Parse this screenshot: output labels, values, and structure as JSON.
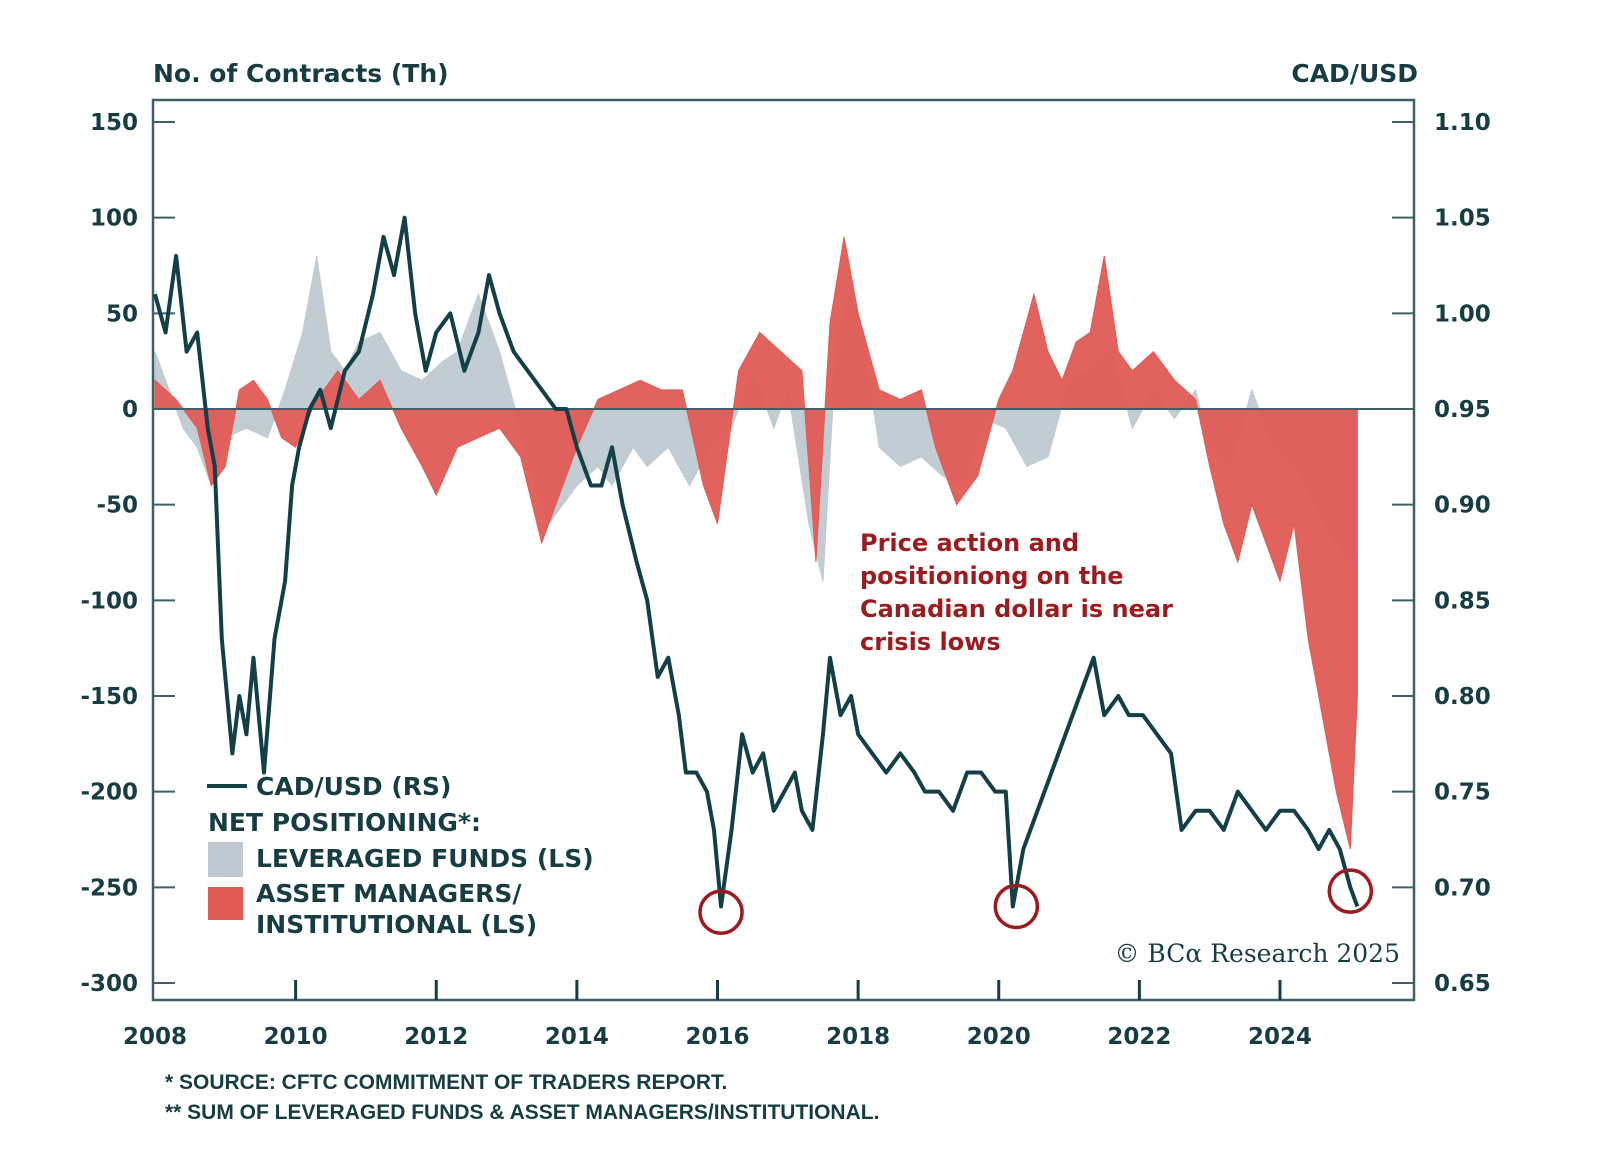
{
  "chart_data": {
    "type": "area",
    "title": "",
    "left_axis": {
      "label": "No. of Contracts (Th)",
      "ylim": [
        -300,
        150
      ],
      "ticks": [
        150,
        100,
        50,
        0,
        -50,
        -100,
        -150,
        -200,
        -250,
        -300
      ],
      "tick_labels": [
        "150",
        "100",
        "50",
        "0",
        "-50",
        "-100",
        "-150",
        "-200",
        "-250",
        "-300"
      ]
    },
    "right_axis": {
      "label": "CAD/USD",
      "ylim": [
        0.65,
        1.1
      ],
      "ticks": [
        1.1,
        1.05,
        1.0,
        0.95,
        0.9,
        0.85,
        0.8,
        0.75,
        0.7,
        0.65
      ],
      "tick_labels": [
        "1.10",
        "1.05",
        "1.00",
        "0.95",
        "0.90",
        "0.85",
        "0.80",
        "0.75",
        "0.70",
        "0.65"
      ]
    },
    "x_axis": {
      "xlim": [
        2008,
        2025.95
      ],
      "ticks": [
        2008,
        2010,
        2012,
        2014,
        2016,
        2018,
        2020,
        2022,
        2024
      ],
      "tick_labels": [
        "2008",
        "2010",
        "2012",
        "2014",
        "2016",
        "2018",
        "2020",
        "2022",
        "2024"
      ]
    },
    "series": [
      {
        "name": "CAD/USD (RS)",
        "type": "line",
        "axis": "right",
        "color": "#143f46",
        "points": [
          [
            2008.0,
            1.01
          ],
          [
            2008.15,
            0.99
          ],
          [
            2008.3,
            1.03
          ],
          [
            2008.45,
            0.98
          ],
          [
            2008.6,
            0.99
          ],
          [
            2008.75,
            0.94
          ],
          [
            2008.85,
            0.92
          ],
          [
            2008.95,
            0.83
          ],
          [
            2009.1,
            0.77
          ],
          [
            2009.2,
            0.8
          ],
          [
            2009.3,
            0.78
          ],
          [
            2009.4,
            0.82
          ],
          [
            2009.55,
            0.76
          ],
          [
            2009.7,
            0.83
          ],
          [
            2009.85,
            0.86
          ],
          [
            2009.95,
            0.91
          ],
          [
            2010.05,
            0.93
          ],
          [
            2010.2,
            0.95
          ],
          [
            2010.35,
            0.96
          ],
          [
            2010.5,
            0.94
          ],
          [
            2010.7,
            0.97
          ],
          [
            2010.9,
            0.98
          ],
          [
            2011.1,
            1.01
          ],
          [
            2011.25,
            1.04
          ],
          [
            2011.4,
            1.02
          ],
          [
            2011.55,
            1.05
          ],
          [
            2011.7,
            1.0
          ],
          [
            2011.85,
            0.97
          ],
          [
            2012.0,
            0.99
          ],
          [
            2012.2,
            1.0
          ],
          [
            2012.4,
            0.97
          ],
          [
            2012.6,
            0.99
          ],
          [
            2012.75,
            1.02
          ],
          [
            2012.9,
            1.0
          ],
          [
            2013.1,
            0.98
          ],
          [
            2013.3,
            0.97
          ],
          [
            2013.5,
            0.96
          ],
          [
            2013.7,
            0.95
          ],
          [
            2013.85,
            0.95
          ],
          [
            2014.0,
            0.93
          ],
          [
            2014.2,
            0.91
          ],
          [
            2014.35,
            0.91
          ],
          [
            2014.5,
            0.93
          ],
          [
            2014.65,
            0.9
          ],
          [
            2014.85,
            0.87
          ],
          [
            2015.0,
            0.85
          ],
          [
            2015.15,
            0.81
          ],
          [
            2015.3,
            0.82
          ],
          [
            2015.45,
            0.79
          ],
          [
            2015.55,
            0.76
          ],
          [
            2015.7,
            0.76
          ],
          [
            2015.85,
            0.75
          ],
          [
            2015.95,
            0.73
          ],
          [
            2016.05,
            0.69
          ],
          [
            2016.2,
            0.73
          ],
          [
            2016.35,
            0.78
          ],
          [
            2016.5,
            0.76
          ],
          [
            2016.65,
            0.77
          ],
          [
            2016.8,
            0.74
          ],
          [
            2016.95,
            0.75
          ],
          [
            2017.1,
            0.76
          ],
          [
            2017.2,
            0.74
          ],
          [
            2017.35,
            0.73
          ],
          [
            2017.5,
            0.78
          ],
          [
            2017.6,
            0.82
          ],
          [
            2017.75,
            0.79
          ],
          [
            2017.9,
            0.8
          ],
          [
            2018.0,
            0.78
          ],
          [
            2018.2,
            0.77
          ],
          [
            2018.4,
            0.76
          ],
          [
            2018.6,
            0.77
          ],
          [
            2018.8,
            0.76
          ],
          [
            2018.95,
            0.75
          ],
          [
            2019.15,
            0.75
          ],
          [
            2019.35,
            0.74
          ],
          [
            2019.55,
            0.76
          ],
          [
            2019.75,
            0.76
          ],
          [
            2019.95,
            0.75
          ],
          [
            2020.1,
            0.75
          ],
          [
            2020.2,
            0.69
          ],
          [
            2020.35,
            0.72
          ],
          [
            2020.55,
            0.74
          ],
          [
            2020.75,
            0.76
          ],
          [
            2020.95,
            0.78
          ],
          [
            2021.15,
            0.8
          ],
          [
            2021.35,
            0.82
          ],
          [
            2021.5,
            0.79
          ],
          [
            2021.7,
            0.8
          ],
          [
            2021.85,
            0.79
          ],
          [
            2022.05,
            0.79
          ],
          [
            2022.25,
            0.78
          ],
          [
            2022.45,
            0.77
          ],
          [
            2022.6,
            0.73
          ],
          [
            2022.8,
            0.74
          ],
          [
            2023.0,
            0.74
          ],
          [
            2023.2,
            0.73
          ],
          [
            2023.4,
            0.75
          ],
          [
            2023.6,
            0.74
          ],
          [
            2023.8,
            0.73
          ],
          [
            2024.0,
            0.74
          ],
          [
            2024.2,
            0.74
          ],
          [
            2024.4,
            0.73
          ],
          [
            2024.55,
            0.72
          ],
          [
            2024.7,
            0.73
          ],
          [
            2024.85,
            0.72
          ],
          [
            2025.0,
            0.7
          ],
          [
            2025.1,
            0.69
          ]
        ]
      },
      {
        "name": "LEVERAGED FUNDS (LS)",
        "type": "area",
        "axis": "left",
        "color": "#bfc9d1",
        "points": [
          [
            2008.0,
            30
          ],
          [
            2008.2,
            10
          ],
          [
            2008.4,
            -10
          ],
          [
            2008.6,
            -20
          ],
          [
            2008.8,
            -40
          ],
          [
            2009.0,
            -15
          ],
          [
            2009.3,
            -10
          ],
          [
            2009.6,
            -15
          ],
          [
            2009.85,
            10
          ],
          [
            2010.1,
            40
          ],
          [
            2010.3,
            80
          ],
          [
            2010.5,
            30
          ],
          [
            2010.7,
            20
          ],
          [
            2010.9,
            35
          ],
          [
            2011.2,
            40
          ],
          [
            2011.5,
            20
          ],
          [
            2011.8,
            15
          ],
          [
            2012.1,
            25
          ],
          [
            2012.3,
            30
          ],
          [
            2012.6,
            60
          ],
          [
            2012.9,
            30
          ],
          [
            2013.2,
            -10
          ],
          [
            2013.4,
            -40
          ],
          [
            2013.6,
            -60
          ],
          [
            2013.8,
            -50
          ],
          [
            2014.0,
            -40
          ],
          [
            2014.3,
            -30
          ],
          [
            2014.5,
            -40
          ],
          [
            2014.8,
            -20
          ],
          [
            2015.0,
            -30
          ],
          [
            2015.3,
            -20
          ],
          [
            2015.6,
            -40
          ],
          [
            2015.9,
            -20
          ],
          [
            2016.2,
            -10
          ],
          [
            2016.5,
            20
          ],
          [
            2016.8,
            -10
          ],
          [
            2017.0,
            10
          ],
          [
            2017.3,
            -60
          ],
          [
            2017.5,
            -90
          ],
          [
            2017.7,
            40
          ],
          [
            2017.9,
            60
          ],
          [
            2018.1,
            30
          ],
          [
            2018.3,
            -20
          ],
          [
            2018.6,
            -30
          ],
          [
            2018.9,
            -25
          ],
          [
            2019.2,
            -35
          ],
          [
            2019.5,
            -40
          ],
          [
            2019.8,
            -5
          ],
          [
            2020.1,
            -10
          ],
          [
            2020.4,
            -30
          ],
          [
            2020.7,
            -25
          ],
          [
            2021.0,
            15
          ],
          [
            2021.3,
            20
          ],
          [
            2021.6,
            30
          ],
          [
            2021.9,
            -10
          ],
          [
            2022.2,
            10
          ],
          [
            2022.5,
            -5
          ],
          [
            2022.8,
            10
          ],
          [
            2023.0,
            -20
          ],
          [
            2023.3,
            -30
          ],
          [
            2023.6,
            10
          ],
          [
            2023.9,
            -20
          ],
          [
            2024.2,
            -30
          ],
          [
            2024.5,
            -50
          ],
          [
            2024.8,
            -70
          ],
          [
            2025.0,
            -80
          ],
          [
            2025.1,
            -75
          ]
        ]
      },
      {
        "name": "ASSET MANAGERS/ INSTITUTIONAL (LS)",
        "type": "area",
        "axis": "left",
        "color": "#e05a55",
        "points": [
          [
            2008.0,
            15
          ],
          [
            2008.3,
            5
          ],
          [
            2008.6,
            -10
          ],
          [
            2008.8,
            -40
          ],
          [
            2009.0,
            -30
          ],
          [
            2009.2,
            10
          ],
          [
            2009.4,
            15
          ],
          [
            2009.6,
            5
          ],
          [
            2009.8,
            -15
          ],
          [
            2010.0,
            -20
          ],
          [
            2010.3,
            5
          ],
          [
            2010.6,
            20
          ],
          [
            2010.9,
            5
          ],
          [
            2011.2,
            15
          ],
          [
            2011.5,
            -10
          ],
          [
            2011.8,
            -30
          ],
          [
            2012.0,
            -45
          ],
          [
            2012.3,
            -20
          ],
          [
            2012.6,
            -15
          ],
          [
            2012.9,
            -10
          ],
          [
            2013.2,
            -25
          ],
          [
            2013.5,
            -70
          ],
          [
            2013.8,
            -40
          ],
          [
            2014.0,
            -20
          ],
          [
            2014.3,
            5
          ],
          [
            2014.6,
            10
          ],
          [
            2014.9,
            15
          ],
          [
            2015.2,
            10
          ],
          [
            2015.5,
            10
          ],
          [
            2015.8,
            -40
          ],
          [
            2016.0,
            -60
          ],
          [
            2016.3,
            20
          ],
          [
            2016.6,
            40
          ],
          [
            2016.9,
            30
          ],
          [
            2017.2,
            20
          ],
          [
            2017.4,
            -80
          ],
          [
            2017.6,
            45
          ],
          [
            2017.8,
            90
          ],
          [
            2018.0,
            50
          ],
          [
            2018.3,
            10
          ],
          [
            2018.6,
            5
          ],
          [
            2018.9,
            10
          ],
          [
            2019.1,
            -20
          ],
          [
            2019.4,
            -50
          ],
          [
            2019.7,
            -35
          ],
          [
            2020.0,
            5
          ],
          [
            2020.2,
            20
          ],
          [
            2020.5,
            60
          ],
          [
            2020.7,
            30
          ],
          [
            2020.9,
            15
          ],
          [
            2021.1,
            35
          ],
          [
            2021.3,
            40
          ],
          [
            2021.5,
            80
          ],
          [
            2021.7,
            30
          ],
          [
            2021.9,
            20
          ],
          [
            2022.2,
            30
          ],
          [
            2022.5,
            15
          ],
          [
            2022.8,
            5
          ],
          [
            2023.0,
            -30
          ],
          [
            2023.2,
            -60
          ],
          [
            2023.4,
            -80
          ],
          [
            2023.6,
            -50
          ],
          [
            2023.8,
            -70
          ],
          [
            2024.0,
            -90
          ],
          [
            2024.2,
            -60
          ],
          [
            2024.4,
            -120
          ],
          [
            2024.6,
            -160
          ],
          [
            2024.8,
            -200
          ],
          [
            2025.0,
            -230
          ],
          [
            2025.1,
            -150
          ]
        ]
      }
    ],
    "legend": {
      "position": "bottom-left",
      "line_entry": "CAD/USD (RS)",
      "group_title": "NET POSITIONING*:",
      "entries": [
        "LEVERAGED FUNDS (LS)",
        "ASSET MANAGERS/",
        "INSTITUTIONAL (LS)"
      ]
    },
    "annotation": {
      "lines": [
        "Price action and",
        "positioniong on the",
        "Canadian dollar is near",
        "crisis lows"
      ],
      "color": "#9b1b1f"
    },
    "highlight_circles": [
      {
        "x": 2016.05,
        "y": 0.687
      },
      {
        "x": 2020.25,
        "y": 0.69
      },
      {
        "x": 2025.0,
        "y": 0.698
      }
    ],
    "grid": false
  },
  "copyright": "© BCα Research 2025",
  "footnotes": [
    "* SOURCE: CFTC COMMITMENT OF TRADERS REPORT.",
    "** SUM OF LEVERAGED FUNDS & ASSET MANAGERS/INSTITUTIONAL."
  ]
}
